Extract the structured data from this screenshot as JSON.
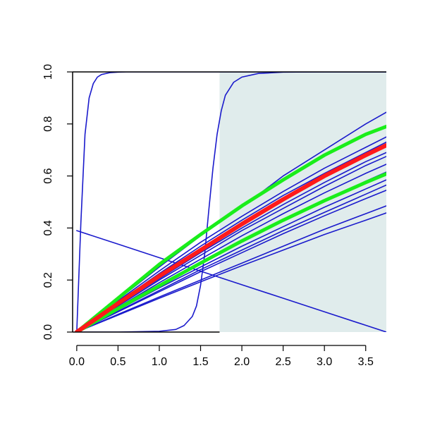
{
  "chart_data": {
    "type": "line",
    "title": "",
    "xlabel": "",
    "ylabel": "",
    "xlim": [
      -0.05,
      3.75
    ],
    "ylim": [
      0,
      1
    ],
    "x_ticks": [
      0.0,
      0.5,
      1.0,
      1.5,
      2.0,
      2.5,
      3.0,
      3.5
    ],
    "x_tick_labels": [
      "0.0",
      "0.5",
      "1.0",
      "1.5",
      "2.0",
      "2.5",
      "3.0",
      "3.5"
    ],
    "y_ticks": [
      0.0,
      0.2,
      0.4,
      0.6,
      0.8,
      1.0
    ],
    "y_tick_labels": [
      "0.0",
      "0.2",
      "0.4",
      "0.6",
      "0.8",
      "1.0"
    ],
    "grid": false,
    "legend": "none",
    "shaded_region": {
      "x_from": 1.73,
      "x_to": 3.75,
      "color": "#e0ecec"
    },
    "colors": {
      "blue": "#1a1acc",
      "red": "#ff1a1a",
      "green": "#1aee1a"
    },
    "series": [
      {
        "color": "blue",
        "width": 1.6,
        "x": [
          0,
          0.05,
          0.1,
          0.15,
          0.2,
          0.25,
          0.3,
          0.4,
          0.5,
          0.6,
          0.7,
          0.8,
          1.0,
          1.5,
          2.0,
          2.5,
          3.0,
          3.5,
          3.75
        ],
        "y": [
          0,
          0.42,
          0.76,
          0.9,
          0.955,
          0.98,
          0.99,
          0.997,
          0.999,
          1,
          1,
          1,
          1,
          1,
          1,
          1,
          1,
          1,
          1
        ]
      },
      {
        "color": "blue",
        "width": 1.6,
        "x": [
          0,
          0.5,
          1.0,
          1.2,
          1.3,
          1.4,
          1.45,
          1.5,
          1.55,
          1.6,
          1.65,
          1.7,
          1.75,
          1.8,
          1.9,
          2.0,
          2.2,
          2.5,
          3.0,
          3.75
        ],
        "y": [
          0,
          0,
          0.003,
          0.01,
          0.025,
          0.06,
          0.1,
          0.18,
          0.3,
          0.47,
          0.63,
          0.76,
          0.85,
          0.91,
          0.96,
          0.98,
          0.994,
          0.999,
          1,
          1
        ]
      },
      {
        "color": "blue",
        "width": 1.6,
        "x": [
          0,
          0.5,
          1.0,
          1.5,
          2.0,
          2.5,
          3.0,
          3.5,
          3.75
        ],
        "y": [
          0.39,
          0.338,
          0.286,
          0.234,
          0.182,
          0.13,
          0.078,
          0.026,
          0
        ]
      },
      {
        "color": "blue",
        "width": 1.6,
        "x": [
          0,
          0.5,
          1.0,
          1.5,
          2.0,
          2.5,
          3.0,
          3.5,
          3.75
        ],
        "y": [
          0,
          0.125,
          0.25,
          0.37,
          0.48,
          0.6,
          0.7,
          0.8,
          0.845
        ]
      },
      {
        "color": "blue",
        "width": 1.6,
        "x": [
          0,
          0.5,
          1.0,
          1.5,
          2.0,
          2.5,
          3.0,
          3.5,
          3.75
        ],
        "y": [
          0,
          0.12,
          0.235,
          0.345,
          0.445,
          0.54,
          0.63,
          0.71,
          0.75
        ]
      },
      {
        "color": "blue",
        "width": 1.6,
        "x": [
          0,
          0.5,
          1.0,
          1.5,
          2.0,
          2.5,
          3.0,
          3.5,
          3.75
        ],
        "y": [
          0,
          0.115,
          0.225,
          0.33,
          0.43,
          0.525,
          0.61,
          0.69,
          0.73
        ]
      },
      {
        "color": "blue",
        "width": 1.6,
        "x": [
          0,
          0.5,
          1.0,
          1.5,
          2.0,
          2.5,
          3.0,
          3.5,
          3.75
        ],
        "y": [
          0,
          0.105,
          0.205,
          0.305,
          0.4,
          0.49,
          0.575,
          0.655,
          0.69
        ]
      },
      {
        "color": "blue",
        "width": 1.6,
        "x": [
          0,
          0.5,
          1.0,
          1.5,
          2.0,
          2.5,
          3.0,
          3.5,
          3.75
        ],
        "y": [
          0,
          0.1,
          0.2,
          0.295,
          0.39,
          0.475,
          0.56,
          0.64,
          0.675
        ]
      },
      {
        "color": "blue",
        "width": 1.6,
        "x": [
          0,
          0.5,
          1.0,
          1.5,
          2.0,
          2.5,
          3.0,
          3.5,
          3.75
        ],
        "y": [
          0,
          0.095,
          0.19,
          0.28,
          0.37,
          0.455,
          0.535,
          0.61,
          0.645
        ]
      },
      {
        "color": "blue",
        "width": 1.6,
        "x": [
          0,
          0.5,
          1.0,
          1.5,
          2.0,
          2.5,
          3.0,
          3.5,
          3.75
        ],
        "y": [
          0,
          0.09,
          0.18,
          0.265,
          0.35,
          0.43,
          0.505,
          0.58,
          0.615
        ]
      },
      {
        "color": "blue",
        "width": 1.6,
        "x": [
          0,
          0.5,
          1.0,
          1.5,
          2.0,
          2.5,
          3.0,
          3.5,
          3.75
        ],
        "y": [
          0,
          0.085,
          0.17,
          0.25,
          0.33,
          0.405,
          0.48,
          0.55,
          0.585
        ]
      },
      {
        "color": "blue",
        "width": 1.6,
        "x": [
          0,
          0.5,
          1.0,
          1.5,
          2.0,
          2.5,
          3.0,
          3.5,
          3.75
        ],
        "y": [
          0,
          0.08,
          0.16,
          0.24,
          0.315,
          0.39,
          0.46,
          0.53,
          0.565
        ]
      },
      {
        "color": "blue",
        "width": 1.6,
        "x": [
          0,
          0.5,
          1.0,
          1.5,
          2.0,
          2.5,
          3.0,
          3.5,
          3.75
        ],
        "y": [
          0,
          0.078,
          0.155,
          0.232,
          0.305,
          0.378,
          0.447,
          0.513,
          0.545
        ]
      },
      {
        "color": "blue",
        "width": 1.6,
        "x": [
          0,
          0.5,
          1.0,
          1.5,
          2.0,
          2.5,
          3.0,
          3.5,
          3.75
        ],
        "y": [
          0,
          0.068,
          0.135,
          0.2,
          0.265,
          0.33,
          0.395,
          0.455,
          0.485
        ]
      },
      {
        "color": "blue",
        "width": 1.6,
        "x": [
          0,
          0.5,
          1.0,
          1.5,
          2.0,
          2.5,
          3.0,
          3.5,
          3.75
        ],
        "y": [
          0,
          0.065,
          0.13,
          0.193,
          0.255,
          0.315,
          0.375,
          0.43,
          0.458
        ]
      },
      {
        "color": "green",
        "width": 5,
        "x": [
          0,
          0.5,
          1.0,
          1.5,
          2.0,
          2.5,
          3.0,
          3.5,
          3.75
        ],
        "y": [
          0,
          0.13,
          0.26,
          0.375,
          0.485,
          0.585,
          0.68,
          0.76,
          0.79
        ]
      },
      {
        "color": "green",
        "width": 5,
        "x": [
          0,
          0.5,
          1.0,
          1.5,
          2.0,
          2.5,
          3.0,
          3.5,
          3.75
        ],
        "y": [
          0,
          0.09,
          0.178,
          0.265,
          0.35,
          0.43,
          0.505,
          0.575,
          0.608
        ]
      },
      {
        "color": "red",
        "width": 6,
        "x": [
          0,
          0.5,
          1.0,
          1.5,
          2.0,
          2.5,
          3.0,
          3.5,
          3.75
        ],
        "y": [
          0,
          0.11,
          0.215,
          0.315,
          0.415,
          0.51,
          0.6,
          0.68,
          0.718
        ]
      }
    ]
  }
}
